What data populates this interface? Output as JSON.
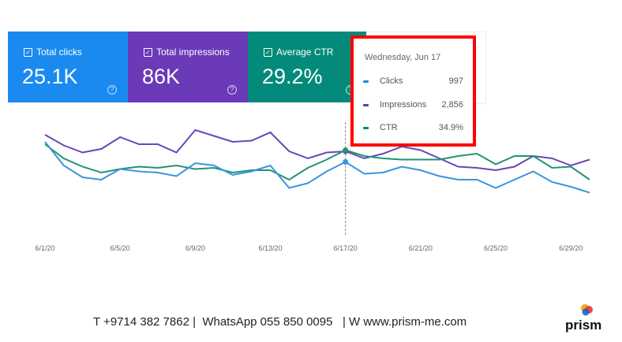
{
  "cards": [
    {
      "label": "Total clicks",
      "value": "25.1K",
      "color": "#1a8af0"
    },
    {
      "label": "Total impressions",
      "value": "86K",
      "color": "#6a3ab8"
    },
    {
      "label": "Average CTR",
      "value": "29.2%",
      "color": "#038a7a"
    }
  ],
  "tooltip": {
    "date": "Wednesday, Jun 17",
    "rows": [
      {
        "label": "Clicks",
        "value": "997",
        "color": "#1e88e5"
      },
      {
        "label": "Impressions",
        "value": "2,856",
        "color": "#5e35b1"
      },
      {
        "label": "CTR",
        "value": "34.9%",
        "color": "#00897b"
      }
    ]
  },
  "chart_data": {
    "type": "line",
    "x": [
      "6/1/20",
      "6/2/20",
      "6/3/20",
      "6/4/20",
      "6/5/20",
      "6/6/20",
      "6/7/20",
      "6/8/20",
      "6/9/20",
      "6/10/20",
      "6/11/20",
      "6/12/20",
      "6/13/20",
      "6/14/20",
      "6/15/20",
      "6/16/20",
      "6/17/20",
      "6/18/20",
      "6/19/20",
      "6/20/20",
      "6/21/20",
      "6/22/20",
      "6/23/20",
      "6/24/20",
      "6/25/20",
      "6/26/20",
      "6/27/20",
      "6/28/20",
      "6/29/20",
      "6/30/20"
    ],
    "tick_labels": [
      "6/1/20",
      "6/5/20",
      "6/9/20",
      "6/13/20",
      "6/17/20",
      "6/21/20",
      "6/25/20",
      "6/29/20"
    ],
    "ylim": [
      0,
      100
    ],
    "ylabel": "relative (no axis shown)",
    "highlight_index": 16,
    "series": [
      {
        "name": "Impressions",
        "color": "#6a45b8",
        "values": [
          86,
          77,
          71,
          74,
          84,
          78,
          78,
          71,
          90,
          85,
          80,
          81,
          88,
          72,
          66,
          71,
          72,
          66,
          70,
          76,
          73,
          66,
          59,
          58,
          56,
          59,
          68,
          66,
          60,
          65
        ]
      },
      {
        "name": "CTR",
        "color": "#1f9470",
        "values": [
          78,
          66,
          59,
          54,
          57,
          59,
          58,
          60,
          57,
          58,
          54,
          56,
          56,
          48,
          58,
          65,
          73,
          68,
          66,
          65,
          65,
          65,
          68,
          70,
          61,
          68,
          68,
          58,
          59,
          48
        ]
      },
      {
        "name": "Clicks",
        "color": "#3a95dc",
        "values": [
          80,
          60,
          50,
          48,
          57,
          55,
          54,
          51,
          62,
          60,
          52,
          55,
          60,
          41,
          45,
          55,
          63,
          53,
          54,
          59,
          56,
          51,
          48,
          48,
          41,
          48,
          55,
          46,
          42,
          37
        ]
      }
    ]
  },
  "footer": {
    "text": "T +9714 382 7862 |  WhatsApp 055 850 0095   | W www.prism-me.com",
    "logo": "prism"
  }
}
